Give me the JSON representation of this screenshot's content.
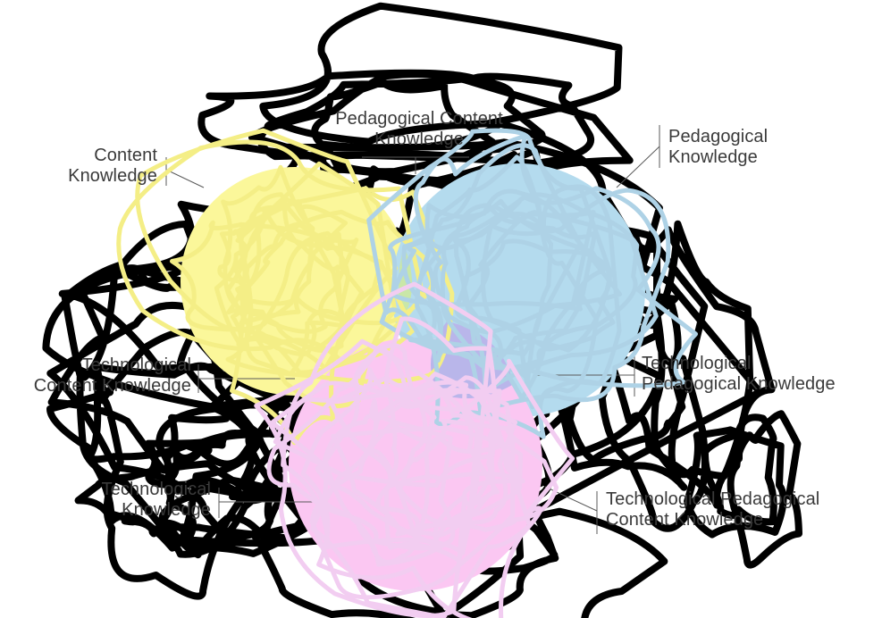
{
  "diagram": {
    "circles": [
      {
        "name": "content-knowledge-circle",
        "color": "#fbf79a"
      },
      {
        "name": "pedagogical-knowledge-circle",
        "color": "#b4dbee"
      },
      {
        "name": "technological-knowledge-circle",
        "color": "#fbc7f2"
      }
    ],
    "overlap_colors": {
      "content_pedagogical": "#c9e7a8",
      "tpack_center": "#b9b6ea"
    },
    "scribble_colors": {
      "background": "#000000",
      "content": "#f4ee86",
      "pedagogical": "#aed2e6",
      "technological": "#f2cdf1"
    },
    "labels": {
      "content_knowledge": "Content\nKnowledge",
      "pedagogical_content_knowledge": "Pedagogical Content\nKnowledge",
      "pedagogical_knowledge": "Pedagogical\nKnowledge",
      "technological_content_knowledge": "Technological\nContent Knowledge",
      "technological_pedagogical_knowledge": "Technological\nPedagogical Knowledge",
      "technological_knowledge": "Technological\nKnowledge",
      "tpack": "Technological Pedagogical\nContent Knowledge"
    }
  }
}
